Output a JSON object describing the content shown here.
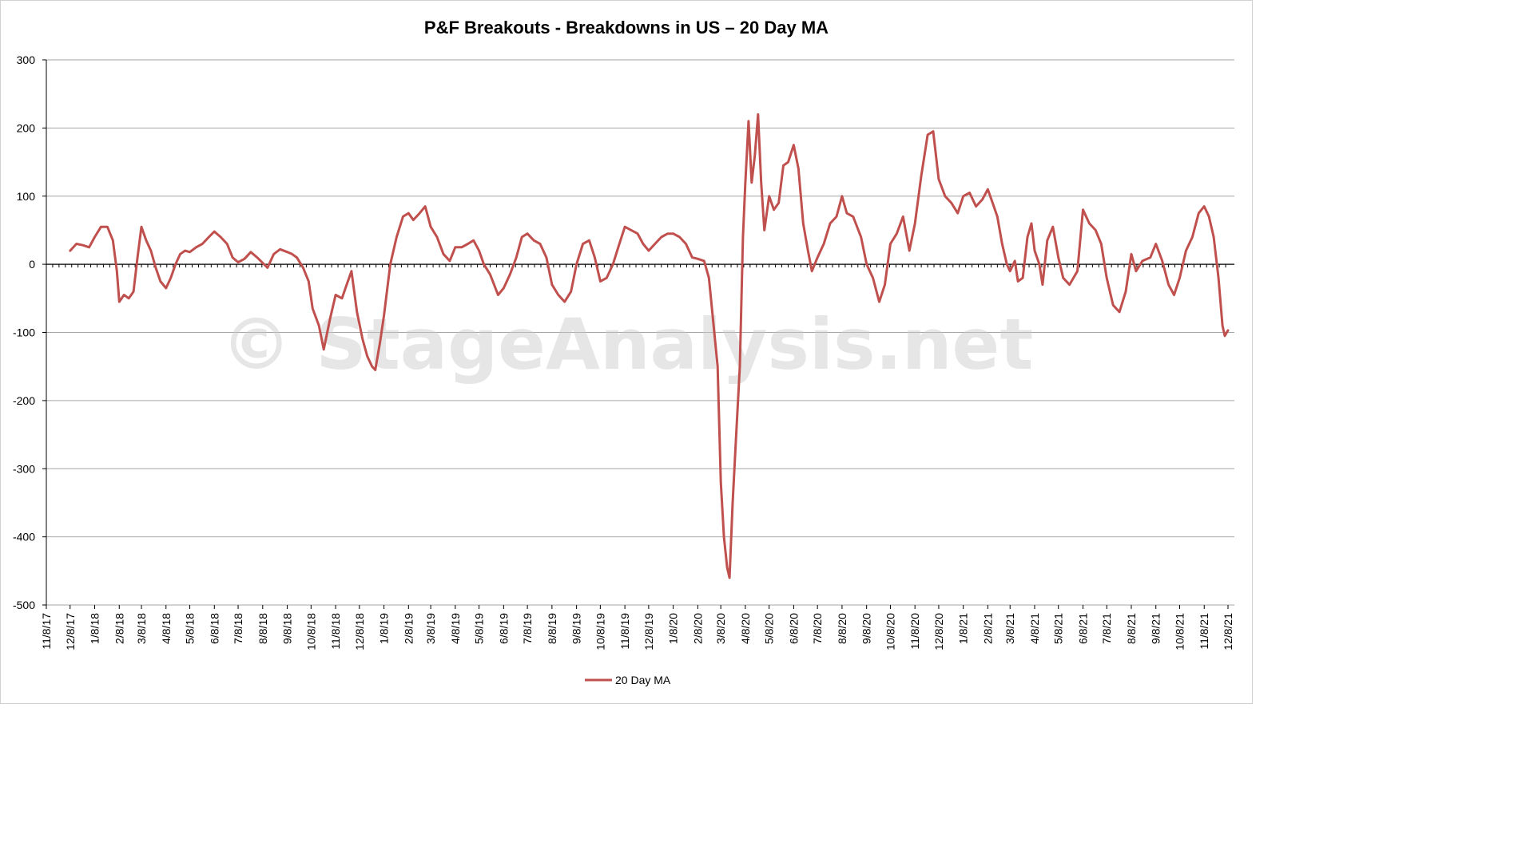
{
  "chart_data": {
    "type": "line",
    "title": "P&F Breakouts - Breakdowns in US – 20 Day MA",
    "watermark": "© StageAnalysis.net",
    "xlabel": "",
    "ylabel": "",
    "ylim": [
      -500,
      300
    ],
    "y_ticks": [
      300,
      200,
      100,
      0,
      -100,
      -200,
      -300,
      -400,
      -500
    ],
    "x_tick_labels": [
      "11/8/17",
      "12/8/17",
      "1/8/18",
      "2/8/18",
      "3/8/18",
      "4/8/18",
      "5/8/18",
      "6/8/18",
      "7/8/18",
      "8/8/18",
      "9/8/18",
      "10/8/18",
      "11/8/18",
      "12/8/18",
      "1/8/19",
      "2/8/19",
      "3/8/19",
      "4/8/19",
      "5/8/19",
      "6/8/19",
      "7/8/19",
      "8/8/19",
      "9/8/19",
      "10/8/19",
      "11/8/19",
      "12/8/19",
      "1/8/20",
      "2/8/20",
      "3/8/20",
      "4/8/20",
      "5/8/20",
      "6/8/20",
      "7/8/20",
      "8/8/20",
      "9/8/20",
      "10/8/20",
      "11/8/20",
      "12/8/20",
      "1/8/21",
      "2/8/21",
      "3/8/21",
      "4/8/21",
      "5/8/21",
      "6/8/21",
      "7/8/21",
      "8/8/21",
      "9/8/21",
      "10/8/21",
      "11/8/21",
      "12/8/21"
    ],
    "grid": true,
    "legend_position": "bottom",
    "colors": {
      "series": "#c0504d",
      "grid": "#a6a6a6",
      "axis": "#000000"
    },
    "series": [
      {
        "name": "20 Day MA",
        "points": [
          [
            "12/8/17",
            20
          ],
          [
            "12/16/17",
            30
          ],
          [
            "12/24/17",
            28
          ],
          [
            "1/1/18",
            25
          ],
          [
            "1/8/18",
            40
          ],
          [
            "1/16/18",
            55
          ],
          [
            "1/24/18",
            55
          ],
          [
            "1/31/18",
            35
          ],
          [
            "2/5/18",
            -10
          ],
          [
            "2/8/18",
            -55
          ],
          [
            "2/14/18",
            -45
          ],
          [
            "2/20/18",
            -50
          ],
          [
            "2/26/18",
            -40
          ],
          [
            "3/3/18",
            10
          ],
          [
            "3/8/18",
            55
          ],
          [
            "3/14/18",
            35
          ],
          [
            "3/20/18",
            20
          ],
          [
            "3/26/18",
            -5
          ],
          [
            "4/1/18",
            -25
          ],
          [
            "4/8/18",
            -35
          ],
          [
            "4/14/18",
            -20
          ],
          [
            "4/20/18",
            0
          ],
          [
            "4/26/18",
            15
          ],
          [
            "5/2/18",
            20
          ],
          [
            "5/8/18",
            18
          ],
          [
            "5/16/18",
            25
          ],
          [
            "5/24/18",
            30
          ],
          [
            "6/1/18",
            40
          ],
          [
            "6/8/18",
            48
          ],
          [
            "6/16/18",
            40
          ],
          [
            "6/24/18",
            30
          ],
          [
            "7/1/18",
            10
          ],
          [
            "7/8/18",
            3
          ],
          [
            "7/16/18",
            8
          ],
          [
            "7/24/18",
            18
          ],
          [
            "8/1/18",
            10
          ],
          [
            "8/8/18",
            2
          ],
          [
            "8/14/18",
            -5
          ],
          [
            "8/22/18",
            15
          ],
          [
            "8/30/18",
            22
          ],
          [
            "9/8/18",
            18
          ],
          [
            "9/14/18",
            15
          ],
          [
            "9/20/18",
            10
          ],
          [
            "9/28/18",
            -5
          ],
          [
            "10/5/18",
            -25
          ],
          [
            "10/10/18",
            -65
          ],
          [
            "10/18/18",
            -90
          ],
          [
            "10/24/18",
            -125
          ],
          [
            "11/1/18",
            -80
          ],
          [
            "11/8/18",
            -45
          ],
          [
            "11/16/18",
            -50
          ],
          [
            "11/22/18",
            -30
          ],
          [
            "11/28/18",
            -10
          ],
          [
            "12/5/18",
            -70
          ],
          [
            "12/12/18",
            -110
          ],
          [
            "12/18/18",
            -135
          ],
          [
            "12/24/18",
            -150
          ],
          [
            "12/28/18",
            -155
          ],
          [
            "1/3/19",
            -115
          ],
          [
            "1/8/19",
            -75
          ],
          [
            "1/16/19",
            0
          ],
          [
            "1/24/19",
            40
          ],
          [
            "2/1/19",
            70
          ],
          [
            "2/8/19",
            75
          ],
          [
            "2/14/19",
            65
          ],
          [
            "2/22/19",
            75
          ],
          [
            "3/1/19",
            85
          ],
          [
            "3/8/19",
            55
          ],
          [
            "3/16/19",
            40
          ],
          [
            "3/24/19",
            15
          ],
          [
            "4/1/19",
            5
          ],
          [
            "4/8/19",
            25
          ],
          [
            "4/16/19",
            25
          ],
          [
            "4/24/19",
            30
          ],
          [
            "5/1/19",
            35
          ],
          [
            "5/8/19",
            20
          ],
          [
            "5/14/19",
            0
          ],
          [
            "5/22/19",
            -15
          ],
          [
            "6/1/19",
            -45
          ],
          [
            "6/8/19",
            -35
          ],
          [
            "6/16/19",
            -15
          ],
          [
            "6/24/19",
            10
          ],
          [
            "7/1/19",
            40
          ],
          [
            "7/8/19",
            45
          ],
          [
            "7/16/19",
            35
          ],
          [
            "7/24/19",
            30
          ],
          [
            "8/1/19",
            10
          ],
          [
            "8/8/19",
            -30
          ],
          [
            "8/16/19",
            -45
          ],
          [
            "8/24/19",
            -55
          ],
          [
            "9/1/19",
            -40
          ],
          [
            "9/8/19",
            0
          ],
          [
            "9/16/19",
            30
          ],
          [
            "9/24/19",
            35
          ],
          [
            "10/1/19",
            10
          ],
          [
            "10/8/19",
            -25
          ],
          [
            "10/16/19",
            -20
          ],
          [
            "10/24/19",
            0
          ],
          [
            "11/1/19",
            30
          ],
          [
            "11/8/19",
            55
          ],
          [
            "11/16/19",
            50
          ],
          [
            "11/24/19",
            45
          ],
          [
            "12/1/19",
            30
          ],
          [
            "12/8/19",
            20
          ],
          [
            "12/16/19",
            30
          ],
          [
            "12/24/19",
            40
          ],
          [
            "1/1/20",
            45
          ],
          [
            "1/8/20",
            45
          ],
          [
            "1/16/20",
            40
          ],
          [
            "1/24/20",
            30
          ],
          [
            "2/1/20",
            10
          ],
          [
            "2/8/20",
            8
          ],
          [
            "2/16/20",
            5
          ],
          [
            "2/22/20",
            -20
          ],
          [
            "2/28/20",
            -90
          ],
          [
            "3/4/20",
            -150
          ],
          [
            "3/8/20",
            -320
          ],
          [
            "3/12/20",
            -400
          ],
          [
            "3/16/20",
            -445
          ],
          [
            "3/19/20",
            -460
          ],
          [
            "3/23/20",
            -350
          ],
          [
            "3/27/20",
            -260
          ],
          [
            "4/1/20",
            -150
          ],
          [
            "4/5/20",
            40
          ],
          [
            "4/8/20",
            120
          ],
          [
            "4/12/20",
            210
          ],
          [
            "4/16/20",
            120
          ],
          [
            "4/20/20",
            160
          ],
          [
            "4/24/20",
            220
          ],
          [
            "4/28/20",
            120
          ],
          [
            "5/2/20",
            50
          ],
          [
            "5/8/20",
            100
          ],
          [
            "5/14/20",
            80
          ],
          [
            "5/20/20",
            90
          ],
          [
            "5/26/20",
            145
          ],
          [
            "6/1/20",
            150
          ],
          [
            "6/8/20",
            175
          ],
          [
            "6/14/20",
            140
          ],
          [
            "6/20/20",
            60
          ],
          [
            "6/26/20",
            20
          ],
          [
            "7/1/20",
            -10
          ],
          [
            "7/8/20",
            10
          ],
          [
            "7/16/20",
            30
          ],
          [
            "7/24/20",
            60
          ],
          [
            "8/1/20",
            70
          ],
          [
            "8/8/20",
            100
          ],
          [
            "8/14/20",
            75
          ],
          [
            "8/22/20",
            70
          ],
          [
            "9/1/20",
            40
          ],
          [
            "9/8/20",
            0
          ],
          [
            "9/16/20",
            -20
          ],
          [
            "9/24/20",
            -55
          ],
          [
            "10/1/20",
            -30
          ],
          [
            "10/8/20",
            30
          ],
          [
            "10/16/20",
            45
          ],
          [
            "10/24/20",
            70
          ],
          [
            "11/1/20",
            20
          ],
          [
            "11/8/20",
            60
          ],
          [
            "11/16/20",
            130
          ],
          [
            "11/24/20",
            190
          ],
          [
            "12/1/20",
            195
          ],
          [
            "12/8/20",
            125
          ],
          [
            "12/16/20",
            100
          ],
          [
            "12/24/20",
            90
          ],
          [
            "1/1/21",
            75
          ],
          [
            "1/8/21",
            100
          ],
          [
            "1/16/21",
            105
          ],
          [
            "1/24/21",
            85
          ],
          [
            "2/1/21",
            95
          ],
          [
            "2/8/21",
            110
          ],
          [
            "2/14/21",
            90
          ],
          [
            "2/20/21",
            70
          ],
          [
            "2/26/21",
            30
          ],
          [
            "3/4/21",
            0
          ],
          [
            "3/8/21",
            -10
          ],
          [
            "3/14/21",
            5
          ],
          [
            "3/18/21",
            -25
          ],
          [
            "3/24/21",
            -20
          ],
          [
            "3/30/21",
            40
          ],
          [
            "4/4/21",
            60
          ],
          [
            "4/8/21",
            20
          ],
          [
            "4/14/21",
            0
          ],
          [
            "4/18/21",
            -30
          ],
          [
            "4/24/21",
            35
          ],
          [
            "5/1/21",
            55
          ],
          [
            "5/8/21",
            10
          ],
          [
            "5/14/21",
            -20
          ],
          [
            "5/22/21",
            -30
          ],
          [
            "6/1/21",
            -10
          ],
          [
            "6/8/21",
            80
          ],
          [
            "6/16/21",
            60
          ],
          [
            "6/24/21",
            50
          ],
          [
            "7/1/21",
            30
          ],
          [
            "7/8/21",
            -20
          ],
          [
            "7/16/21",
            -60
          ],
          [
            "7/24/21",
            -70
          ],
          [
            "8/1/21",
            -40
          ],
          [
            "8/8/21",
            15
          ],
          [
            "8/14/21",
            -10
          ],
          [
            "8/22/21",
            5
          ],
          [
            "9/1/21",
            10
          ],
          [
            "9/8/21",
            30
          ],
          [
            "9/16/21",
            5
          ],
          [
            "9/24/21",
            -30
          ],
          [
            "10/1/21",
            -45
          ],
          [
            "10/8/21",
            -20
          ],
          [
            "10/16/21",
            20
          ],
          [
            "10/24/21",
            40
          ],
          [
            "11/1/21",
            75
          ],
          [
            "11/8/21",
            85
          ],
          [
            "11/14/21",
            70
          ],
          [
            "11/20/21",
            40
          ],
          [
            "11/26/21",
            -20
          ],
          [
            "12/1/21",
            -90
          ],
          [
            "12/4/21",
            -105
          ],
          [
            "12/8/21",
            -97
          ]
        ]
      }
    ]
  }
}
